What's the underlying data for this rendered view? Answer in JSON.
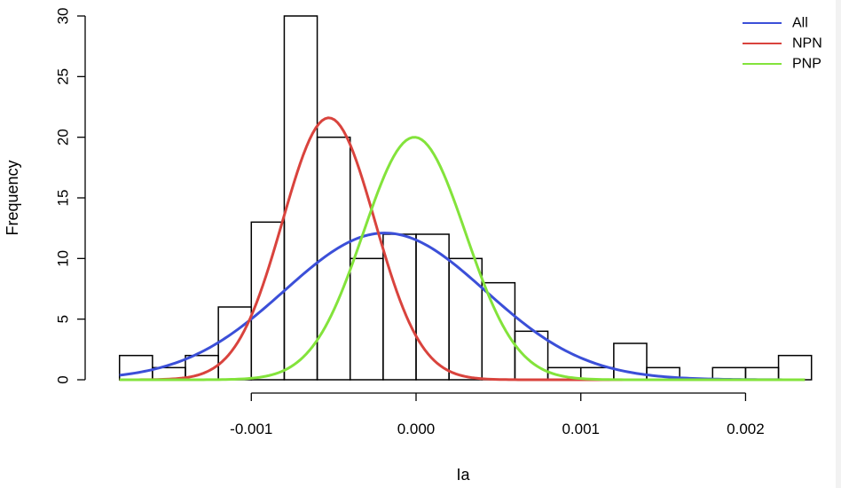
{
  "chart_data": {
    "type": "histogram",
    "xlabel": "Ia",
    "ylabel": "Frequency",
    "xlim": [
      -0.00182,
      0.00238
    ],
    "ylim": [
      0,
      30
    ],
    "bin_width": 0.0002,
    "bins": [
      {
        "x0": -0.0018,
        "x1": -0.0016,
        "count": 2
      },
      {
        "x0": -0.0016,
        "x1": -0.0014,
        "count": 1
      },
      {
        "x0": -0.0014,
        "x1": -0.0012,
        "count": 2
      },
      {
        "x0": -0.0012,
        "x1": -0.001,
        "count": 6
      },
      {
        "x0": -0.001,
        "x1": -0.0008,
        "count": 13
      },
      {
        "x0": -0.0008,
        "x1": -0.0006,
        "count": 30
      },
      {
        "x0": -0.0006,
        "x1": -0.0004,
        "count": 20
      },
      {
        "x0": -0.0004,
        "x1": -0.0002,
        "count": 10
      },
      {
        "x0": -0.0002,
        "x1": 0.0,
        "count": 12
      },
      {
        "x0": 0.0,
        "x1": 0.0002,
        "count": 12
      },
      {
        "x0": 0.0002,
        "x1": 0.0004,
        "count": 10
      },
      {
        "x0": 0.0004,
        "x1": 0.0006,
        "count": 8
      },
      {
        "x0": 0.0006,
        "x1": 0.0008,
        "count": 4
      },
      {
        "x0": 0.0008,
        "x1": 0.001,
        "count": 1
      },
      {
        "x0": 0.001,
        "x1": 0.0012,
        "count": 1
      },
      {
        "x0": 0.0012,
        "x1": 0.0014,
        "count": 3
      },
      {
        "x0": 0.0014,
        "x1": 0.0016,
        "count": 1
      },
      {
        "x0": 0.0016,
        "x1": 0.0018,
        "count": 0
      },
      {
        "x0": 0.0018,
        "x1": 0.002,
        "count": 1
      },
      {
        "x0": 0.002,
        "x1": 0.0022,
        "count": 1
      },
      {
        "x0": 0.0022,
        "x1": 0.0024,
        "count": 2
      }
    ],
    "x_ticks": [
      {
        "value": -0.001,
        "label": "-0.001"
      },
      {
        "value": 0.0,
        "label": "0.000"
      },
      {
        "value": 0.001,
        "label": "0.001"
      },
      {
        "value": 0.002,
        "label": "0.002"
      }
    ],
    "y_ticks": [
      {
        "value": 0,
        "label": "0"
      },
      {
        "value": 5,
        "label": "5"
      },
      {
        "value": 10,
        "label": "10"
      },
      {
        "value": 15,
        "label": "15"
      },
      {
        "value": 20,
        "label": "20"
      },
      {
        "value": 25,
        "label": "25"
      },
      {
        "value": 30,
        "label": "30"
      }
    ],
    "series": [
      {
        "name": "All",
        "type": "normal-curve",
        "color": "#3b4fd8",
        "peak": 12.1,
        "mean": -0.00019,
        "sd": 0.00061
      },
      {
        "name": "NPN",
        "type": "normal-curve",
        "color": "#d9433d",
        "peak": 21.6,
        "mean": -0.00053,
        "sd": 0.00028
      },
      {
        "name": "PNP",
        "type": "normal-curve",
        "color": "#83e33b",
        "peak": 20.0,
        "mean": -1e-05,
        "sd": 0.00031
      }
    ],
    "curve_x_range": [
      -0.0018,
      0.00236
    ],
    "legend": {
      "position": "top-right",
      "entries": [
        "All",
        "NPN",
        "PNP"
      ]
    },
    "grid": false
  }
}
